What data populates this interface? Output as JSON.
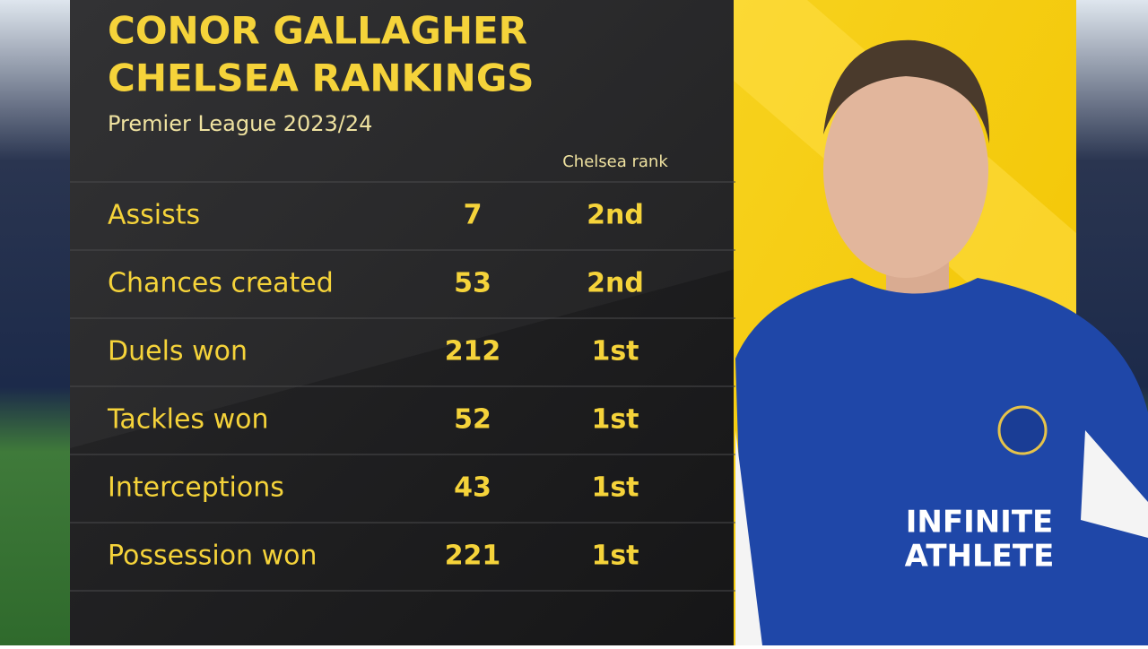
{
  "header": {
    "title": [
      "CONOR GALLAGHER",
      "CHELSEA RANKINGS"
    ],
    "subtitle": "Premier League 2023/24"
  },
  "table": {
    "columns": [
      "Chelsea rank"
    ],
    "rows": [
      [
        "Assists",
        7,
        "2nd"
      ],
      [
        "Chances created",
        53,
        "2nd"
      ],
      [
        "Duels won",
        212,
        "1st"
      ],
      [
        "Tackles won",
        52,
        "1st"
      ],
      [
        "Interceptions",
        43,
        "1st"
      ],
      [
        "Possession won",
        221,
        "1st"
      ]
    ]
  },
  "photo": {
    "jersey_text": [
      "INFINITE",
      "ATHLETE"
    ]
  }
}
